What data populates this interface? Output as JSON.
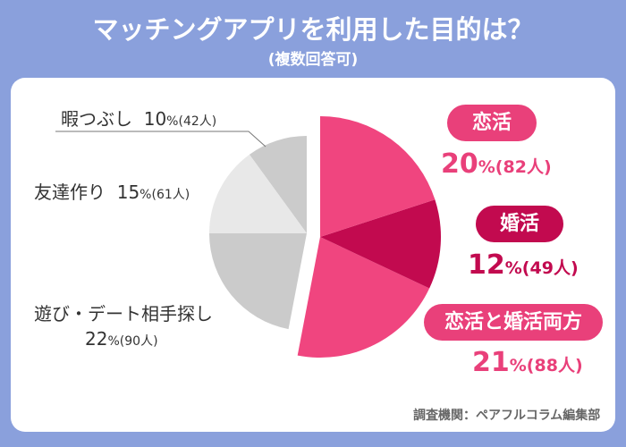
{
  "title": "マッチングアプリを利用した目的は？",
  "subtitle": "(複数回答可)",
  "source": "調査機関：ペアフルコラム編集部",
  "chart_data": {
    "type": "pie",
    "title": "マッチングアプリを利用した目的は？",
    "unit": "%",
    "count_unit": "人",
    "start": "12 o'clock, clockwise",
    "exploded_group": [
      "恋活",
      "婚活",
      "恋活と婚活両方"
    ],
    "slices": [
      {
        "label": "恋活",
        "value": 20,
        "count": 82,
        "color": "#f0457f"
      },
      {
        "label": "婚活",
        "value": 12,
        "count": 49,
        "color": "#c20a4f"
      },
      {
        "label": "恋活と婚活両方",
        "value": 21,
        "count": 88,
        "color": "#f0457f"
      },
      {
        "label": "遊び・デート相手探し",
        "value": 22,
        "count": 90,
        "color": "#cbcbcb"
      },
      {
        "label": "友達作り",
        "value": 15,
        "count": 61,
        "color": "#e8e8e8"
      },
      {
        "label": "暇つぶし",
        "value": 10,
        "count": 42,
        "color": "#cbcbcb"
      }
    ]
  }
}
